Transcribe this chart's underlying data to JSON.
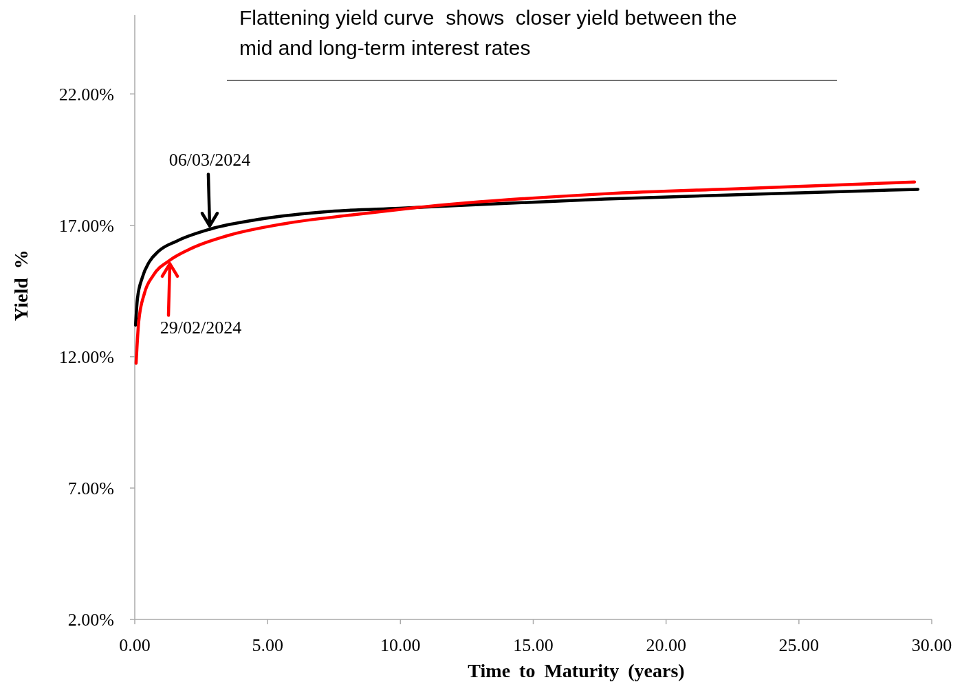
{
  "chart_data": {
    "type": "line",
    "title": "Flattening yield curve  shows  closer yield between the mid and long-term interest rates",
    "xlabel": "Time to Maturity (years)",
    "ylabel": "Yield %",
    "xlim": [
      0,
      30
    ],
    "ylim": [
      2,
      25
    ],
    "xticks": [
      {
        "value": 0,
        "label": "0.00"
      },
      {
        "value": 5,
        "label": "5.00"
      },
      {
        "value": 10,
        "label": "10.00"
      },
      {
        "value": 15,
        "label": "15.00"
      },
      {
        "value": 20,
        "label": "20.00"
      },
      {
        "value": 25,
        "label": "25.00"
      },
      {
        "value": 30,
        "label": "30.00"
      }
    ],
    "yticks": [
      {
        "value": 2,
        "label": "2.00%"
      },
      {
        "value": 7,
        "label": "7.00%"
      },
      {
        "value": 12,
        "label": "12.00%"
      },
      {
        "value": 17,
        "label": "17.00%"
      },
      {
        "value": 22,
        "label": "22.00%"
      }
    ],
    "marker": "none",
    "line_style": "solid",
    "series": [
      {
        "color": "#000000",
        "x": [
          0.03,
          0.1,
          0.28,
          0.54,
          0.88,
          1.58,
          2.82,
          4.76,
          7.35,
          9.94,
          17.7,
          22.88,
          29.48
        ],
        "values": [
          13.2,
          14.2,
          15.0,
          15.6,
          16.0,
          16.4,
          16.85,
          17.24,
          17.53,
          17.65,
          18.0,
          18.17,
          18.37
        ]
      },
      {
        "color": "#ff0000",
        "x": [
          0.05,
          0.15,
          0.36,
          0.7,
          1.32,
          2.17,
          3.47,
          5.62,
          8.2,
          10.46,
          17.7,
          22.88,
          29.35
        ],
        "values": [
          11.75,
          13.35,
          14.4,
          15.1,
          15.67,
          16.14,
          16.6,
          17.06,
          17.4,
          17.66,
          18.2,
          18.4,
          18.65
        ]
      }
    ],
    "annotations": [
      {
        "text": "06/03/2024",
        "x": 2.82,
        "y": 16.85
      },
      {
        "text": "29/02/2024",
        "x": 1.32,
        "y": 15.67
      }
    ]
  }
}
